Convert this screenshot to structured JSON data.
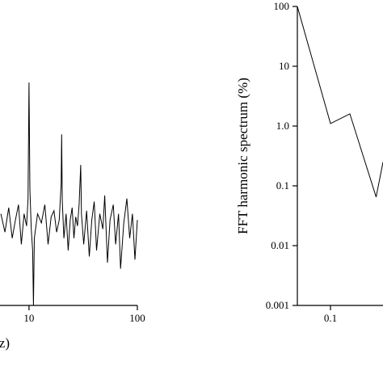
{
  "chart_data": [
    {
      "type": "line",
      "xlabel": "Hz)",
      "xscale": "log",
      "color": "#000000",
      "x": [
        5.5,
        6,
        6.5,
        7,
        7.5,
        8,
        8.5,
        9,
        9.5,
        9.8,
        10,
        10.2,
        10.5,
        10.8,
        11,
        11.2,
        12,
        13,
        14,
        15,
        16,
        17,
        18,
        19,
        19.8,
        20,
        20.3,
        21,
        22,
        23,
        24,
        25,
        26,
        27,
        28,
        29,
        30,
        30.5,
        32,
        34,
        36,
        38,
        40,
        42,
        45,
        48,
        50,
        53,
        56,
        60,
        63,
        67,
        70,
        75,
        80,
        85,
        90,
        95,
        100
      ],
      "values": [
        30,
        24,
        32,
        22,
        28,
        33,
        20,
        30,
        26,
        35,
        73,
        38,
        25,
        18,
        0,
        22,
        30,
        27,
        33,
        20,
        29,
        31,
        24,
        28,
        40,
        56,
        34,
        22,
        30,
        18,
        28,
        32,
        22,
        29,
        26,
        33,
        46,
        30,
        20,
        31,
        16,
        28,
        34,
        18,
        30,
        25,
        36,
        14,
        28,
        33,
        20,
        30,
        12,
        27,
        35,
        22,
        30,
        15,
        28
      ],
      "xlim": [
        5.4,
        100
      ],
      "ylim": [
        0,
        100
      ],
      "xticks": [
        10,
        100
      ]
    },
    {
      "type": "line",
      "ylabel": "FFT harmonic spectrum (%)",
      "xscale": "log",
      "yscale": "log",
      "color": "#000000",
      "x": [
        0.05,
        0.1,
        0.15,
        0.26,
        0.3
      ],
      "values": [
        100,
        1.1,
        1.6,
        0.065,
        0.25
      ],
      "xlim": [
        0.05,
        0.3
      ],
      "ylim": [
        0.001,
        100
      ],
      "xticks": [
        0.1
      ],
      "yticks": [
        0.001,
        0.01,
        0.1,
        {
          "value": 1,
          "label": "1.0"
        },
        10,
        100
      ]
    }
  ]
}
